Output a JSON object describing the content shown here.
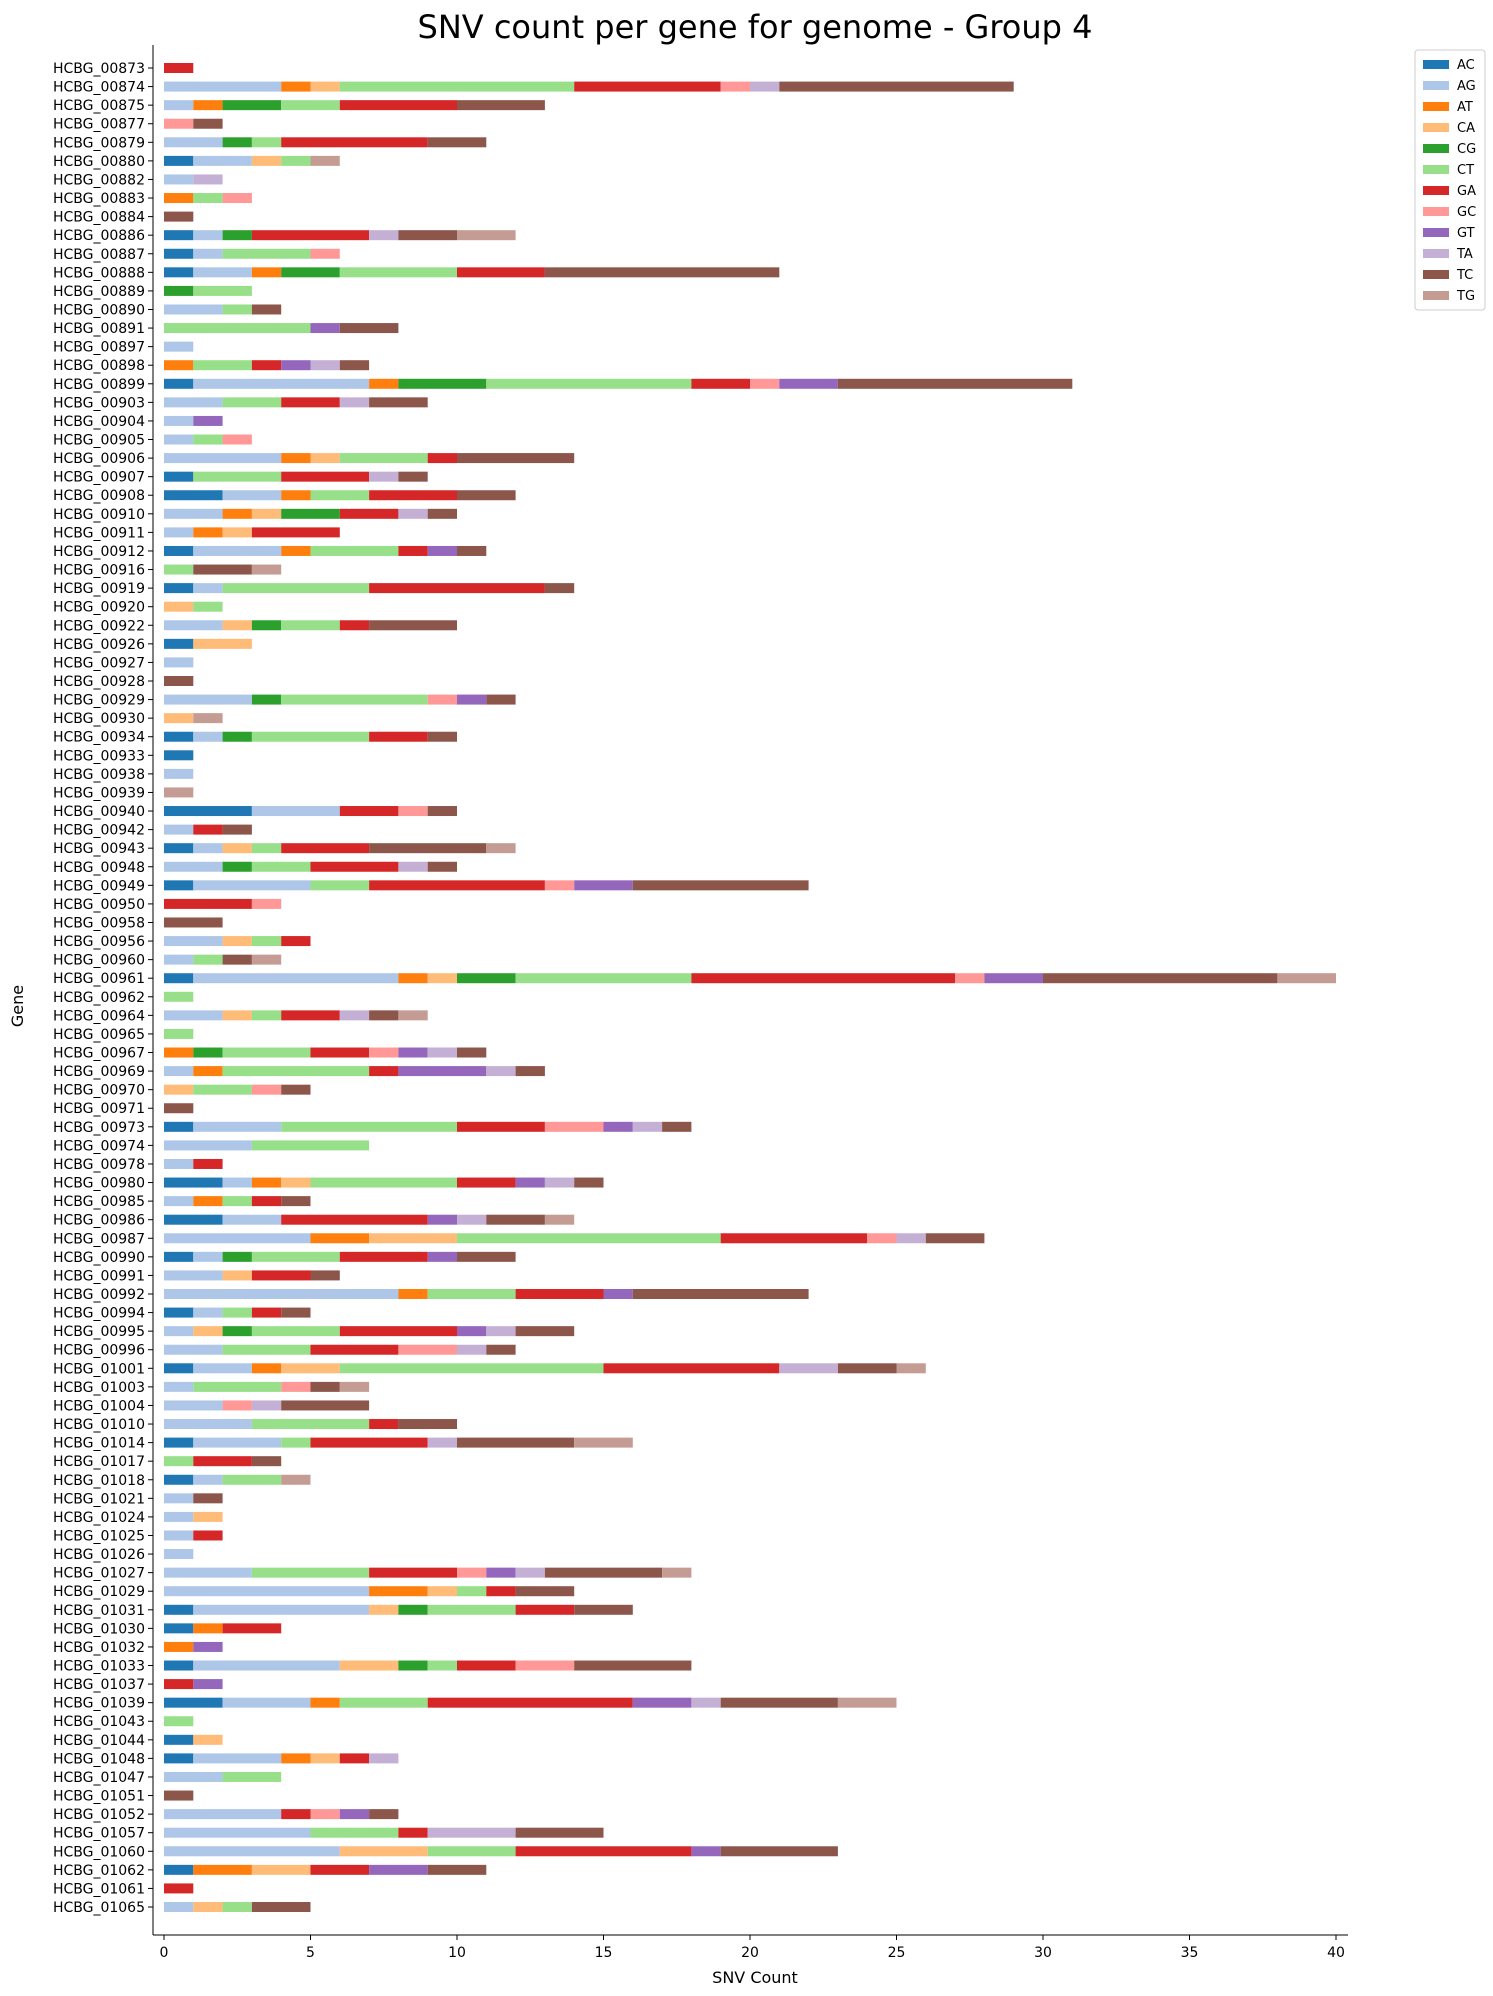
{
  "chart_data": {
    "type": "bar",
    "orientation": "horizontal",
    "stacked": true,
    "title": "SNV count per gene for genome - Group 4",
    "xlabel": "SNV Count",
    "ylabel": "Gene",
    "xlim": [
      0,
      40
    ],
    "xticks": [
      0,
      5,
      10,
      15,
      20,
      25,
      30,
      35,
      40
    ],
    "grid": false,
    "legend_position": "upper-right outside",
    "series": [
      {
        "name": "AC",
        "color": "#1f77b4"
      },
      {
        "name": "AG",
        "color": "#aec7e8"
      },
      {
        "name": "AT",
        "color": "#ff7f0e"
      },
      {
        "name": "CA",
        "color": "#ffbb78"
      },
      {
        "name": "CG",
        "color": "#2ca02c"
      },
      {
        "name": "CT",
        "color": "#98df8a"
      },
      {
        "name": "GA",
        "color": "#d62728"
      },
      {
        "name": "GC",
        "color": "#ff9896"
      },
      {
        "name": "GT",
        "color": "#9467bd"
      },
      {
        "name": "TA",
        "color": "#c5b0d5"
      },
      {
        "name": "TC",
        "color": "#8c564b"
      },
      {
        "name": "TG",
        "color": "#c49c94"
      }
    ],
    "rows": [
      {
        "gene": "HCBG_00873",
        "counts": {
          "GA": 1
        }
      },
      {
        "gene": "HCBG_00874",
        "counts": {
          "AG": 4,
          "AT": 1,
          "CA": 1,
          "CT": 8,
          "GA": 5,
          "GC": 1,
          "TA": 1,
          "TC": 8
        }
      },
      {
        "gene": "HCBG_00875",
        "counts": {
          "AG": 1,
          "AT": 1,
          "CG": 2,
          "CT": 2,
          "GA": 4,
          "TC": 3
        }
      },
      {
        "gene": "HCBG_00877",
        "counts": {
          "GC": 1,
          "TC": 1
        }
      },
      {
        "gene": "HCBG_00879",
        "counts": {
          "AG": 2,
          "CG": 1,
          "CT": 1,
          "GA": 5,
          "TC": 2
        }
      },
      {
        "gene": "HCBG_00880",
        "counts": {
          "AC": 1,
          "AG": 2,
          "CA": 1,
          "CT": 1,
          "TG": 1
        }
      },
      {
        "gene": "HCBG_00882",
        "counts": {
          "AG": 1,
          "TA": 1
        }
      },
      {
        "gene": "HCBG_00883",
        "counts": {
          "AT": 1,
          "CT": 1,
          "GC": 1
        }
      },
      {
        "gene": "HCBG_00884",
        "counts": {
          "TC": 1
        }
      },
      {
        "gene": "HCBG_00886",
        "counts": {
          "AC": 1,
          "AG": 1,
          "CG": 1,
          "GA": 4,
          "TA": 1,
          "TC": 2,
          "TG": 2
        }
      },
      {
        "gene": "HCBG_00887",
        "counts": {
          "AC": 1,
          "AG": 1,
          "CT": 3,
          "GC": 1
        }
      },
      {
        "gene": "HCBG_00888",
        "counts": {
          "AC": 1,
          "AG": 2,
          "AT": 1,
          "CG": 2,
          "CT": 4,
          "GA": 3,
          "TC": 8
        }
      },
      {
        "gene": "HCBG_00889",
        "counts": {
          "CG": 1,
          "CT": 2
        }
      },
      {
        "gene": "HCBG_00890",
        "counts": {
          "AG": 2,
          "CT": 1,
          "TC": 1
        }
      },
      {
        "gene": "HCBG_00891",
        "counts": {
          "CT": 5,
          "GT": 1,
          "TC": 2
        }
      },
      {
        "gene": "HCBG_00897",
        "counts": {
          "AG": 1
        }
      },
      {
        "gene": "HCBG_00898",
        "counts": {
          "AT": 1,
          "CT": 2,
          "GA": 1,
          "GT": 1,
          "TA": 1,
          "TC": 1
        }
      },
      {
        "gene": "HCBG_00899",
        "counts": {
          "AC": 1,
          "AG": 6,
          "AT": 1,
          "CG": 3,
          "CT": 7,
          "GA": 2,
          "GC": 1,
          "GT": 2,
          "TC": 8
        }
      },
      {
        "gene": "HCBG_00903",
        "counts": {
          "AG": 2,
          "CT": 2,
          "GA": 2,
          "TA": 1,
          "TC": 2
        }
      },
      {
        "gene": "HCBG_00904",
        "counts": {
          "AG": 1,
          "GT": 1
        }
      },
      {
        "gene": "HCBG_00905",
        "counts": {
          "AG": 1,
          "CT": 1,
          "GC": 1
        }
      },
      {
        "gene": "HCBG_00906",
        "counts": {
          "AG": 4,
          "AT": 1,
          "CA": 1,
          "CT": 3,
          "GA": 1,
          "TC": 4
        }
      },
      {
        "gene": "HCBG_00907",
        "counts": {
          "AC": 1,
          "CT": 3,
          "GA": 3,
          "TA": 1,
          "TC": 1
        }
      },
      {
        "gene": "HCBG_00908",
        "counts": {
          "AC": 2,
          "AG": 2,
          "AT": 1,
          "CT": 2,
          "GA": 3,
          "TC": 2
        }
      },
      {
        "gene": "HCBG_00910",
        "counts": {
          "AG": 2,
          "AT": 1,
          "CA": 1,
          "CG": 2,
          "GA": 2,
          "TA": 1,
          "TC": 1
        }
      },
      {
        "gene": "HCBG_00911",
        "counts": {
          "AG": 1,
          "AT": 1,
          "CA": 1,
          "GA": 3
        }
      },
      {
        "gene": "HCBG_00912",
        "counts": {
          "AC": 1,
          "AG": 3,
          "AT": 1,
          "CT": 3,
          "GA": 1,
          "GT": 1,
          "TC": 1
        }
      },
      {
        "gene": "HCBG_00916",
        "counts": {
          "CT": 1,
          "TC": 2,
          "TG": 1
        }
      },
      {
        "gene": "HCBG_00919",
        "counts": {
          "AC": 1,
          "AG": 1,
          "CT": 5,
          "GA": 6,
          "TC": 1
        }
      },
      {
        "gene": "HCBG_00920",
        "counts": {
          "CA": 1,
          "CT": 1
        }
      },
      {
        "gene": "HCBG_00922",
        "counts": {
          "AG": 2,
          "CA": 1,
          "CG": 1,
          "CT": 2,
          "GA": 1,
          "TC": 3
        }
      },
      {
        "gene": "HCBG_00926",
        "counts": {
          "AC": 1,
          "CA": 2
        }
      },
      {
        "gene": "HCBG_00927",
        "counts": {
          "AG": 1
        }
      },
      {
        "gene": "HCBG_00928",
        "counts": {
          "TC": 1
        }
      },
      {
        "gene": "HCBG_00929",
        "counts": {
          "AG": 3,
          "CG": 1,
          "CT": 5,
          "GC": 1,
          "GT": 1,
          "TC": 1
        }
      },
      {
        "gene": "HCBG_00930",
        "counts": {
          "CA": 1,
          "TG": 1
        }
      },
      {
        "gene": "HCBG_00934",
        "counts": {
          "AC": 1,
          "AG": 1,
          "CG": 1,
          "CT": 4,
          "GA": 2,
          "TC": 1
        }
      },
      {
        "gene": "HCBG_00933",
        "counts": {
          "AC": 1
        }
      },
      {
        "gene": "HCBG_00938",
        "counts": {
          "AG": 1
        }
      },
      {
        "gene": "HCBG_00939",
        "counts": {
          "TG": 1
        }
      },
      {
        "gene": "HCBG_00940",
        "counts": {
          "AC": 3,
          "AG": 3,
          "GA": 2,
          "GC": 1,
          "TC": 1
        }
      },
      {
        "gene": "HCBG_00942",
        "counts": {
          "AG": 1,
          "GA": 1,
          "TC": 1
        }
      },
      {
        "gene": "HCBG_00943",
        "counts": {
          "AC": 1,
          "AG": 1,
          "CA": 1,
          "CT": 1,
          "GA": 3,
          "TC": 4,
          "TG": 1
        }
      },
      {
        "gene": "HCBG_00948",
        "counts": {
          "AG": 2,
          "CG": 1,
          "CT": 2,
          "GA": 3,
          "TA": 1,
          "TC": 1
        }
      },
      {
        "gene": "HCBG_00949",
        "counts": {
          "AC": 1,
          "AG": 4,
          "CT": 2,
          "GA": 6,
          "GC": 1,
          "GT": 2,
          "TC": 6
        }
      },
      {
        "gene": "HCBG_00950",
        "counts": {
          "GA": 3,
          "GC": 1
        }
      },
      {
        "gene": "HCBG_00958",
        "counts": {
          "TC": 2
        }
      },
      {
        "gene": "HCBG_00956",
        "counts": {
          "AG": 2,
          "CA": 1,
          "CT": 1,
          "GA": 1
        }
      },
      {
        "gene": "HCBG_00960",
        "counts": {
          "AG": 1,
          "CT": 1,
          "TC": 1,
          "TG": 1
        }
      },
      {
        "gene": "HCBG_00961",
        "counts": {
          "AC": 1,
          "AG": 7,
          "AT": 1,
          "CA": 1,
          "CG": 2,
          "CT": 6,
          "GA": 9,
          "GC": 1,
          "GT": 2,
          "TC": 8,
          "TG": 2
        }
      },
      {
        "gene": "HCBG_00962",
        "counts": {
          "CT": 1
        }
      },
      {
        "gene": "HCBG_00964",
        "counts": {
          "AG": 2,
          "CA": 1,
          "CT": 1,
          "GA": 2,
          "TA": 1,
          "TC": 1,
          "TG": 1
        }
      },
      {
        "gene": "HCBG_00965",
        "counts": {
          "CT": 1
        }
      },
      {
        "gene": "HCBG_00967",
        "counts": {
          "AT": 1,
          "CG": 1,
          "CT": 3,
          "GA": 2,
          "GC": 1,
          "GT": 1,
          "TA": 1,
          "TC": 1
        }
      },
      {
        "gene": "HCBG_00969",
        "counts": {
          "AG": 1,
          "AT": 1,
          "CT": 5,
          "GA": 1,
          "GT": 3,
          "TA": 1,
          "TC": 1
        }
      },
      {
        "gene": "HCBG_00970",
        "counts": {
          "CA": 1,
          "CT": 2,
          "GC": 1,
          "TC": 1
        }
      },
      {
        "gene": "HCBG_00971",
        "counts": {
          "TC": 1
        }
      },
      {
        "gene": "HCBG_00973",
        "counts": {
          "AC": 1,
          "AG": 3,
          "CT": 6,
          "GA": 3,
          "GC": 2,
          "GT": 1,
          "TA": 1,
          "TC": 1
        }
      },
      {
        "gene": "HCBG_00974",
        "counts": {
          "AG": 3,
          "CT": 4
        }
      },
      {
        "gene": "HCBG_00978",
        "counts": {
          "AG": 1,
          "GA": 1
        }
      },
      {
        "gene": "HCBG_00980",
        "counts": {
          "AC": 2,
          "AG": 1,
          "AT": 1,
          "CA": 1,
          "CT": 5,
          "GA": 2,
          "GT": 1,
          "TA": 1,
          "TC": 1
        }
      },
      {
        "gene": "HCBG_00985",
        "counts": {
          "AG": 1,
          "AT": 1,
          "CT": 1,
          "GA": 1,
          "TC": 1
        }
      },
      {
        "gene": "HCBG_00986",
        "counts": {
          "AC": 2,
          "AG": 2,
          "GA": 5,
          "GT": 1,
          "TA": 1,
          "TC": 2,
          "TG": 1
        }
      },
      {
        "gene": "HCBG_00987",
        "counts": {
          "AG": 5,
          "AT": 2,
          "CA": 3,
          "CT": 9,
          "GA": 5,
          "GC": 1,
          "TA": 1,
          "TC": 2
        }
      },
      {
        "gene": "HCBG_00990",
        "counts": {
          "AC": 1,
          "AG": 1,
          "CG": 1,
          "CT": 3,
          "GA": 3,
          "GT": 1,
          "TC": 2
        }
      },
      {
        "gene": "HCBG_00991",
        "counts": {
          "AG": 2,
          "CA": 1,
          "GA": 2,
          "TC": 1
        }
      },
      {
        "gene": "HCBG_00992",
        "counts": {
          "AG": 8,
          "AT": 1,
          "CT": 3,
          "GA": 3,
          "GT": 1,
          "TC": 6
        }
      },
      {
        "gene": "HCBG_00994",
        "counts": {
          "AC": 1,
          "AG": 1,
          "CT": 1,
          "GA": 1,
          "TC": 1
        }
      },
      {
        "gene": "HCBG_00995",
        "counts": {
          "AG": 1,
          "CA": 1,
          "CG": 1,
          "CT": 3,
          "GA": 4,
          "GT": 1,
          "TA": 1,
          "TC": 2
        }
      },
      {
        "gene": "HCBG_00996",
        "counts": {
          "AG": 2,
          "CT": 3,
          "GA": 3,
          "GC": 2,
          "TA": 1,
          "TC": 1
        }
      },
      {
        "gene": "HCBG_01001",
        "counts": {
          "AC": 1,
          "AG": 2,
          "AT": 1,
          "CA": 2,
          "CT": 9,
          "GA": 6,
          "TA": 2,
          "TC": 2,
          "TG": 1
        }
      },
      {
        "gene": "HCBG_01003",
        "counts": {
          "AG": 1,
          "CT": 3,
          "GC": 1,
          "TC": 1,
          "TG": 1
        }
      },
      {
        "gene": "HCBG_01004",
        "counts": {
          "AG": 2,
          "GC": 1,
          "TA": 1,
          "TC": 3
        }
      },
      {
        "gene": "HCBG_01010",
        "counts": {
          "AG": 3,
          "CT": 4,
          "GA": 1,
          "TC": 2
        }
      },
      {
        "gene": "HCBG_01014",
        "counts": {
          "AC": 1,
          "AG": 3,
          "CT": 1,
          "GA": 4,
          "TA": 1,
          "TC": 4,
          "TG": 2
        }
      },
      {
        "gene": "HCBG_01017",
        "counts": {
          "CT": 1,
          "GA": 2,
          "TC": 1
        }
      },
      {
        "gene": "HCBG_01018",
        "counts": {
          "AC": 1,
          "AG": 1,
          "CT": 2,
          "TG": 1
        }
      },
      {
        "gene": "HCBG_01021",
        "counts": {
          "AG": 1,
          "TC": 1
        }
      },
      {
        "gene": "HCBG_01024",
        "counts": {
          "AG": 1,
          "CA": 1
        }
      },
      {
        "gene": "HCBG_01025",
        "counts": {
          "AG": 1,
          "GA": 1
        }
      },
      {
        "gene": "HCBG_01026",
        "counts": {
          "AG": 1
        }
      },
      {
        "gene": "HCBG_01027",
        "counts": {
          "AG": 3,
          "CT": 4,
          "GA": 3,
          "GC": 1,
          "GT": 1,
          "TA": 1,
          "TC": 4,
          "TG": 1
        }
      },
      {
        "gene": "HCBG_01029",
        "counts": {
          "AG": 7,
          "AT": 2,
          "CA": 1,
          "CT": 1,
          "GA": 1,
          "TC": 2
        }
      },
      {
        "gene": "HCBG_01031",
        "counts": {
          "AC": 1,
          "AG": 6,
          "CA": 1,
          "CG": 1,
          "CT": 3,
          "GA": 2,
          "TC": 2
        }
      },
      {
        "gene": "HCBG_01030",
        "counts": {
          "AC": 1,
          "AT": 1,
          "GA": 2
        }
      },
      {
        "gene": "HCBG_01032",
        "counts": {
          "AT": 1,
          "GT": 1
        }
      },
      {
        "gene": "HCBG_01033",
        "counts": {
          "AC": 1,
          "AG": 5,
          "CA": 2,
          "CG": 1,
          "CT": 1,
          "GA": 2,
          "GC": 2,
          "TC": 4
        }
      },
      {
        "gene": "HCBG_01037",
        "counts": {
          "GA": 1,
          "GT": 1
        }
      },
      {
        "gene": "HCBG_01039",
        "counts": {
          "AC": 2,
          "AG": 3,
          "AT": 1,
          "CT": 3,
          "GA": 7,
          "GT": 2,
          "TA": 1,
          "TC": 4,
          "TG": 2
        }
      },
      {
        "gene": "HCBG_01043",
        "counts": {
          "CT": 1
        }
      },
      {
        "gene": "HCBG_01044",
        "counts": {
          "AC": 1,
          "CA": 1
        }
      },
      {
        "gene": "HCBG_01048",
        "counts": {
          "AC": 1,
          "AG": 3,
          "AT": 1,
          "CA": 1,
          "GA": 1,
          "TA": 1
        }
      },
      {
        "gene": "HCBG_01047",
        "counts": {
          "AG": 2,
          "CT": 2
        }
      },
      {
        "gene": "HCBG_01051",
        "counts": {
          "TC": 1
        }
      },
      {
        "gene": "HCBG_01052",
        "counts": {
          "AG": 4,
          "GA": 1,
          "GC": 1,
          "GT": 1,
          "TC": 1
        }
      },
      {
        "gene": "HCBG_01057",
        "counts": {
          "AG": 5,
          "CT": 3,
          "GA": 1,
          "TA": 3,
          "TC": 3
        }
      },
      {
        "gene": "HCBG_01060",
        "counts": {
          "AG": 6,
          "CA": 3,
          "CT": 3,
          "GA": 6,
          "GT": 1,
          "TC": 4
        }
      },
      {
        "gene": "HCBG_01062",
        "counts": {
          "AC": 1,
          "AT": 2,
          "CA": 2,
          "GA": 2,
          "GT": 2,
          "TC": 2
        }
      },
      {
        "gene": "HCBG_01061",
        "counts": {
          "GA": 1
        }
      },
      {
        "gene": "HCBG_01065",
        "counts": {
          "AG": 1,
          "CA": 1,
          "CT": 1,
          "TC": 2
        }
      }
    ]
  }
}
